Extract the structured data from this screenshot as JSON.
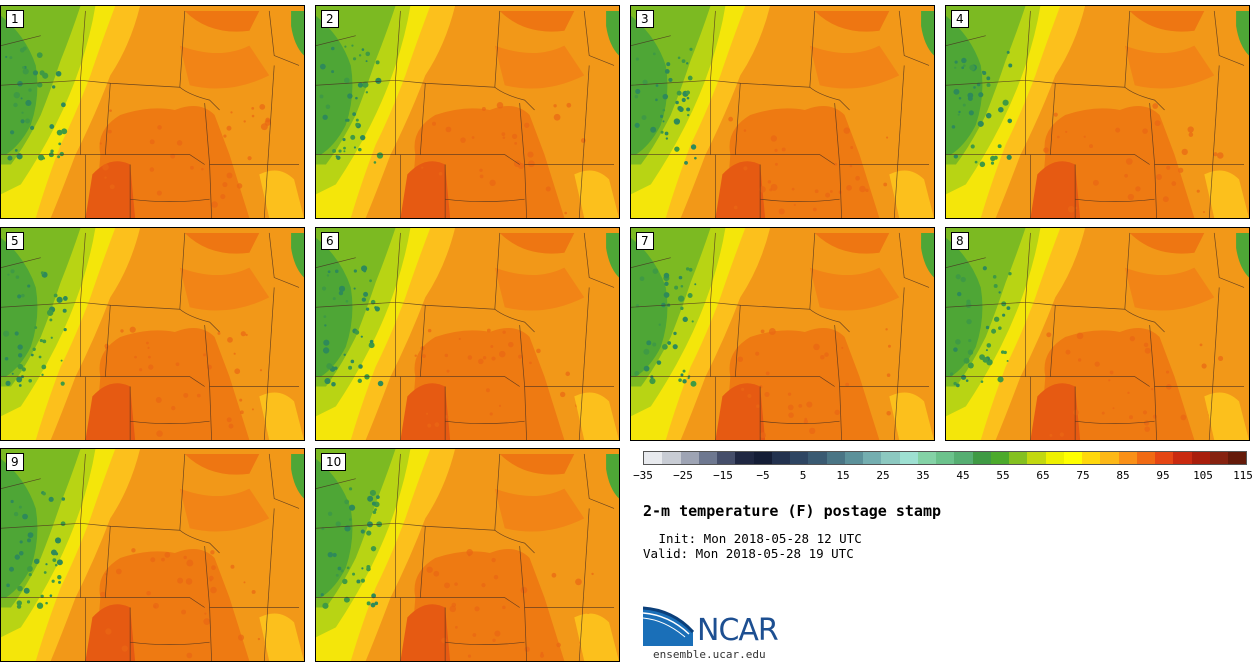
{
  "figure": {
    "title": "2-m temperature (F) postage stamp",
    "init": " Init: Mon 2018-05-28 12 UTC",
    "valid": "Valid: Mon 2018-05-28 19 UTC"
  },
  "members": [
    "1",
    "2",
    "3",
    "4",
    "5",
    "6",
    "7",
    "8",
    "9",
    "10"
  ],
  "colorbar": {
    "ticks": [
      "−35",
      "−25",
      "−15",
      "−5",
      "5",
      "15",
      "25",
      "35",
      "45",
      "55",
      "65",
      "75",
      "85",
      "95",
      "105",
      "115"
    ],
    "colors": [
      "#e8eaee",
      "#c8ccd4",
      "#9ea4b4",
      "#6e7890",
      "#454e6a",
      "#1f2742",
      "#141d36",
      "#23324f",
      "#2e4562",
      "#3a5a72",
      "#4a7585",
      "#5c919a",
      "#74aeb0",
      "#8cc8c0",
      "#9ee0d2",
      "#84d2a6",
      "#6cc28c",
      "#56ae72",
      "#3f9a44",
      "#4caa2c",
      "#84c020",
      "#c2d810",
      "#eef000",
      "#ffff00",
      "#ffd80c",
      "#fcb818",
      "#f99018",
      "#f06a14",
      "#e54614",
      "#c92a10",
      "#a81e0c",
      "#862210",
      "#641a0a"
    ]
  },
  "logo": {
    "text": "NCAR",
    "site": "ensemble.ucar.edu"
  }
}
